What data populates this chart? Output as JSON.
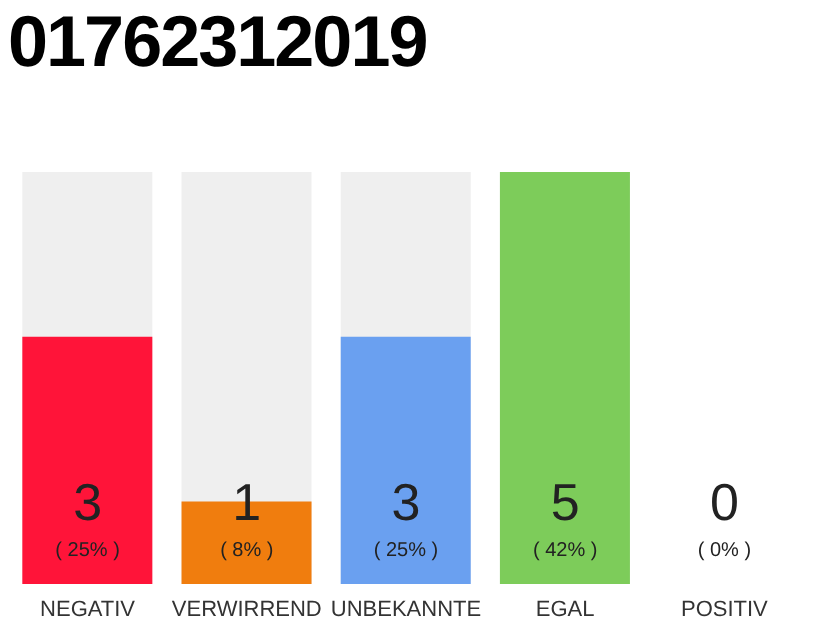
{
  "chart_data": {
    "type": "bar",
    "title": "01762312019",
    "categories": [
      "NEGATIV",
      "VERWIRREND",
      "UNBEKANNTE",
      "EGAL",
      "POSITIV"
    ],
    "values": [
      3,
      1,
      3,
      5,
      0
    ],
    "colors": [
      "#ff1439",
      "#f07d0e",
      "#6aa0f0",
      "#7dcc5a",
      "#cccccc"
    ],
    "data_labels": true,
    "annotations": [
      "( 25% )",
      "( 8% )",
      "( 25% )",
      "( 42% )",
      "( 0% )"
    ],
    "tick_labels": "x"
  }
}
